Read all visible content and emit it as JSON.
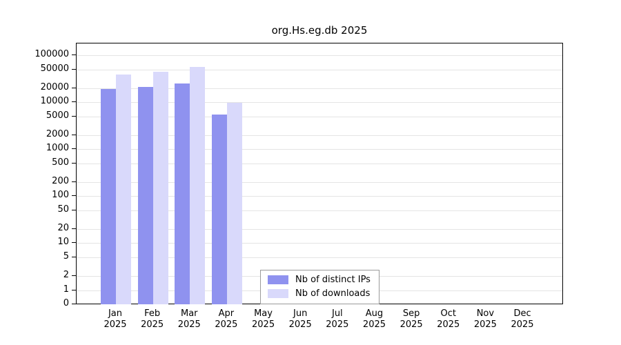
{
  "title": "org.Hs.eg.db 2025",
  "legend": {
    "items": [
      {
        "label": "Nb of distinct IPs",
        "color": "#8f92ef"
      },
      {
        "label": "Nb of downloads",
        "color": "#d9d9fb"
      }
    ]
  },
  "chart_data": {
    "type": "bar",
    "title": "org.Hs.eg.db 2025",
    "categories": [
      "Jan 2025",
      "Feb 2025",
      "Mar 2025",
      "Apr 2025",
      "May 2025",
      "Jun 2025",
      "Jul 2025",
      "Aug 2025",
      "Sep 2025",
      "Oct 2025",
      "Nov 2025",
      "Dec 2025"
    ],
    "series": [
      {
        "name": "Nb of distinct IPs",
        "color": "#8f92ef",
        "values": [
          18800,
          20800,
          25000,
          5400,
          null,
          null,
          null,
          null,
          null,
          null,
          null,
          null
        ]
      },
      {
        "name": "Nb of downloads",
        "color": "#d9d9fb",
        "values": [
          39000,
          44000,
          56000,
          9800,
          null,
          null,
          null,
          null,
          null,
          null,
          null,
          null
        ]
      }
    ],
    "xlabel": "",
    "ylabel": "",
    "y_scale": "log",
    "y_ticks": [
      100000,
      50000,
      20000,
      10000,
      5000,
      2000,
      1000,
      500,
      200,
      100,
      50,
      20,
      10,
      5,
      2,
      1,
      0
    ],
    "grid": true,
    "legend_position": "inside-bottom-center"
  }
}
